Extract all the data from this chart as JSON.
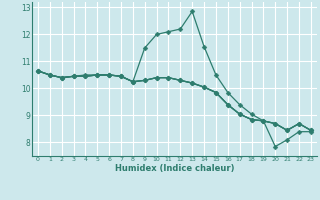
{
  "xlabel": "Humidex (Indice chaleur)",
  "bg_color": "#cde8ec",
  "grid_color": "#ffffff",
  "line_color": "#2e7d6e",
  "marker": "D",
  "marker_size": 2.5,
  "xlim": [
    -0.5,
    23.5
  ],
  "ylim": [
    7.5,
    13.2
  ],
  "xticks": [
    0,
    1,
    2,
    3,
    4,
    5,
    6,
    7,
    8,
    9,
    10,
    11,
    12,
    13,
    14,
    15,
    16,
    17,
    18,
    19,
    20,
    21,
    22,
    23
  ],
  "yticks": [
    8,
    9,
    10,
    11,
    12,
    13
  ],
  "series": [
    {
      "x": [
        0,
        1,
        2,
        3,
        4,
        5,
        6,
        7,
        8,
        9,
        10,
        11,
        12,
        13,
        14,
        15,
        16,
        17,
        18,
        19,
        20,
        21,
        22,
        23
      ],
      "y": [
        10.65,
        10.5,
        10.4,
        10.45,
        10.45,
        10.5,
        10.5,
        10.45,
        10.25,
        10.3,
        10.4,
        10.4,
        10.3,
        10.2,
        10.05,
        9.85,
        9.4,
        9.05,
        8.85,
        8.8,
        8.7,
        8.45,
        8.7,
        8.45
      ]
    },
    {
      "x": [
        0,
        1,
        2,
        3,
        4,
        5,
        6,
        7,
        8,
        9,
        10,
        11,
        12,
        13,
        14,
        15,
        16,
        17,
        18,
        19,
        20,
        21,
        22,
        23
      ],
      "y": [
        10.65,
        10.5,
        10.4,
        10.45,
        10.45,
        10.5,
        10.5,
        10.45,
        10.25,
        10.3,
        10.4,
        10.4,
        10.3,
        10.2,
        10.05,
        9.85,
        9.4,
        9.05,
        8.85,
        8.8,
        8.7,
        8.45,
        8.7,
        8.45
      ]
    },
    {
      "x": [
        0,
        1,
        2,
        3,
        4,
        5,
        6,
        7,
        8,
        9,
        10,
        11,
        12,
        13,
        14,
        15,
        16,
        17,
        18,
        19,
        20,
        21,
        22,
        23
      ],
      "y": [
        10.65,
        10.5,
        10.4,
        10.45,
        10.45,
        10.5,
        10.5,
        10.45,
        10.25,
        10.3,
        10.4,
        10.4,
        10.3,
        10.2,
        10.05,
        9.85,
        9.4,
        9.05,
        8.85,
        8.8,
        8.7,
        8.45,
        8.7,
        8.45
      ]
    },
    {
      "x": [
        0,
        1,
        2,
        3,
        4,
        5,
        6,
        7,
        8,
        9,
        10,
        11,
        12,
        13,
        14,
        15,
        16,
        17,
        18,
        19,
        20,
        21,
        22,
        23
      ],
      "y": [
        10.65,
        10.5,
        10.4,
        10.45,
        10.5,
        10.5,
        10.5,
        10.45,
        10.25,
        11.5,
        12.0,
        12.1,
        12.2,
        12.85,
        11.55,
        10.5,
        9.85,
        9.4,
        9.05,
        8.8,
        7.85,
        8.1,
        8.4,
        8.4
      ]
    }
  ]
}
